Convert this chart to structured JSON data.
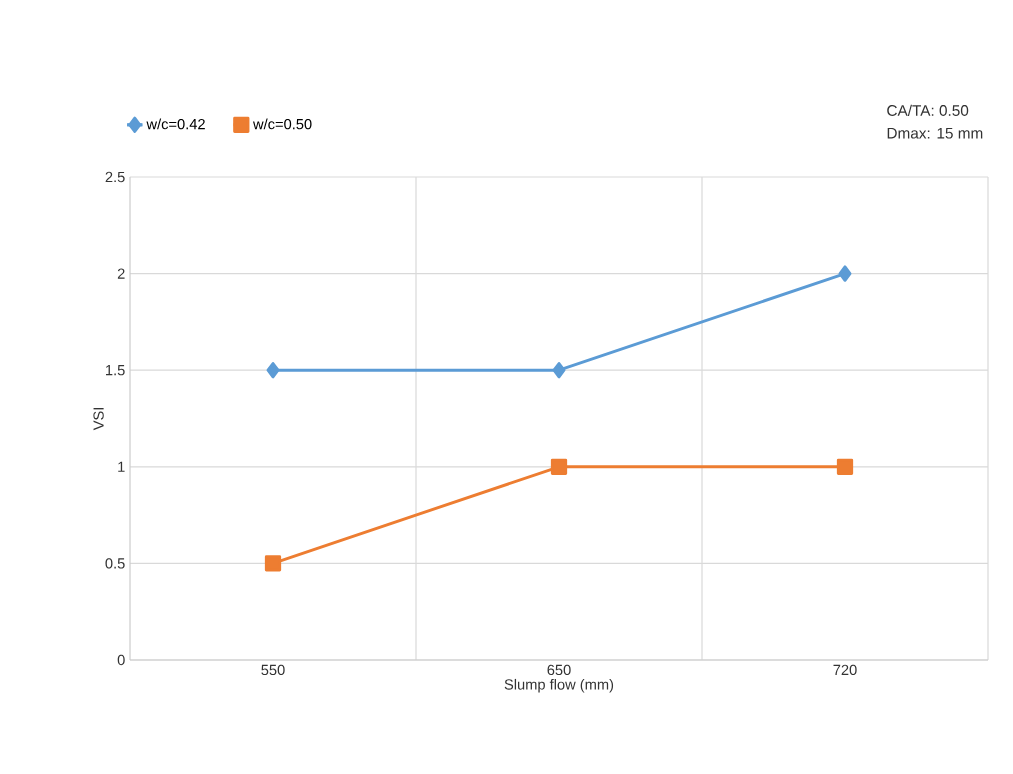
{
  "chart_data": {
    "type": "line",
    "xlabel": "Slump flow (mm)",
    "ylabel": "VSI",
    "categories": [
      "550",
      "650",
      "720"
    ],
    "series": [
      {
        "name": "w/c=0.42",
        "color": "#5b9bd5",
        "marker": "diamond",
        "values": [
          1.5,
          1.5,
          2
        ]
      },
      {
        "name": "w/c=0.50",
        "color": "#ed7d31",
        "marker": "square",
        "values": [
          0.5,
          1,
          1
        ]
      }
    ],
    "ylim": [
      0,
      2.5
    ],
    "yticks": [
      0,
      0.5,
      1,
      1.5,
      2,
      2.5
    ],
    "grid": true,
    "legend": "top left",
    "annotations": [
      "CA/TA: 0.50",
      "Dmax: 15 mm"
    ]
  }
}
